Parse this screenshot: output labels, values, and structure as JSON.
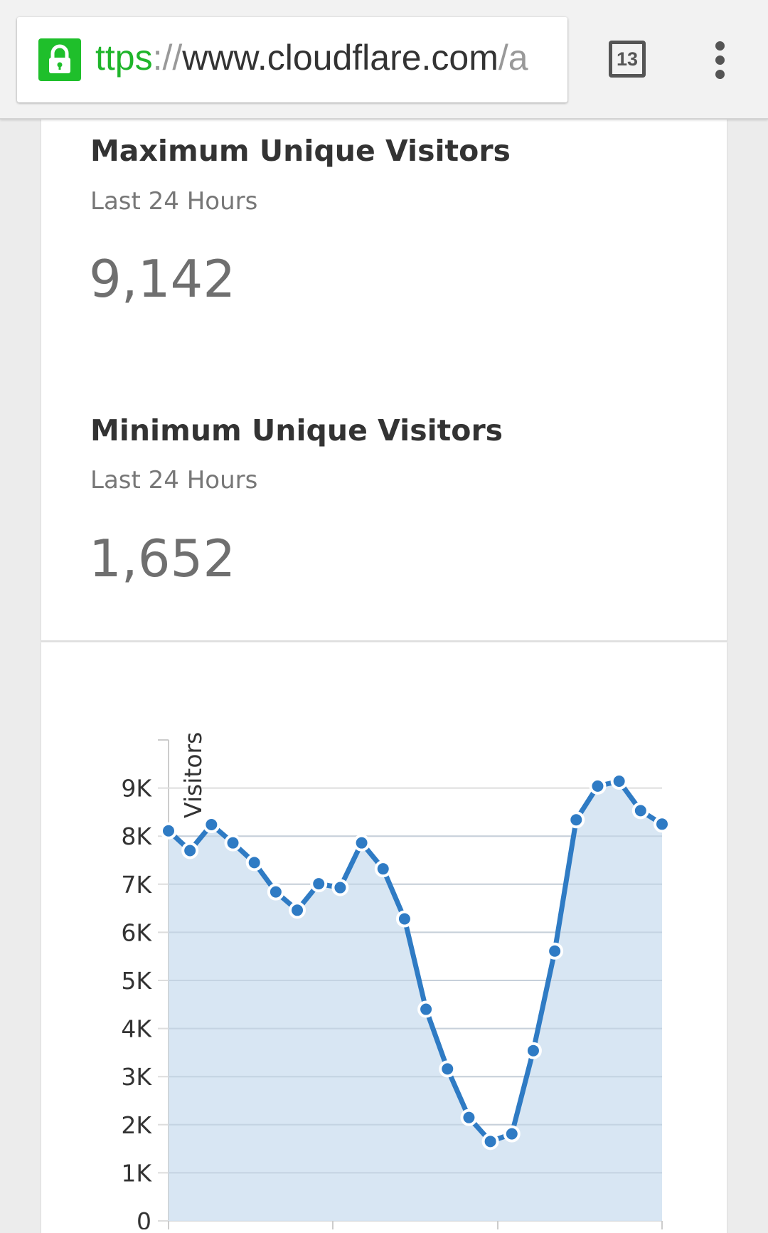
{
  "browser": {
    "url_scheme": "ttps",
    "url_sep": "://",
    "url_host": "www.cloudflare.com",
    "url_rest": "/a",
    "tab_count": "13"
  },
  "max": {
    "title": "Maximum Unique Visitors",
    "subtitle": "Last 24 Hours",
    "value": "9,142"
  },
  "min": {
    "title": "Minimum Unique Visitors",
    "subtitle": "Last 24 Hours",
    "value": "1,652"
  },
  "colors": {
    "line": "#2f7bc4",
    "fill": "#d4e3f2",
    "lock": "#1fbf2b"
  },
  "chart_data": {
    "type": "area",
    "ylabel": "Visitors",
    "ylim": [
      0,
      9500
    ],
    "yticks": [
      "0",
      "1K",
      "2K",
      "3K",
      "4K",
      "5K",
      "6K",
      "7K",
      "8K",
      "9K"
    ],
    "values": [
      8110,
      7700,
      8240,
      7860,
      7450,
      6840,
      6460,
      7010,
      6930,
      7860,
      7320,
      6280,
      4400,
      3160,
      2150,
      1652,
      1810,
      3540,
      5610,
      8340,
      9040,
      9142,
      8530,
      8250
    ]
  }
}
